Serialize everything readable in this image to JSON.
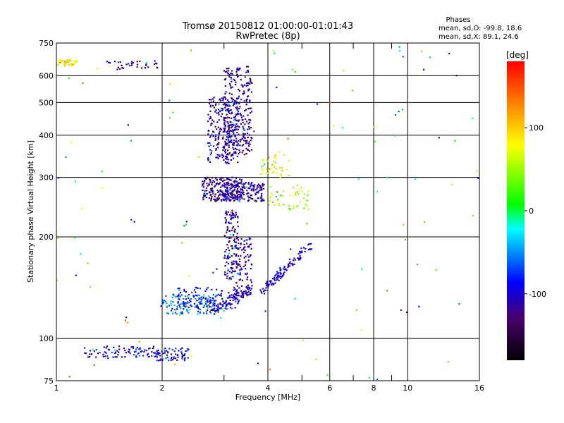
{
  "chart_data": {
    "type": "scatter",
    "title": "Tromsø 20150812 01:00:00-01:01:43",
    "subtitle": "RwPretec (8p)",
    "xlabel": "Frequency [MHz]",
    "ylabel": "Stationary phase Virtual Height [km]",
    "x_scale": "log",
    "y_scale": "log",
    "xlim": [
      1,
      16
    ],
    "ylim": [
      75,
      750
    ],
    "x_ticks": [
      1,
      2,
      4,
      6,
      8,
      10,
      16
    ],
    "x_minor_ticks": [
      3,
      5,
      7,
      9
    ],
    "y_ticks": [
      75,
      100,
      200,
      300,
      400,
      500,
      600,
      750
    ],
    "grid": true,
    "stats_header": "Phases",
    "stats_line_O": "mean, sd,O: -99.8, 18.6",
    "stats_line_X": "mean, sd,X: 89.1, 24.6",
    "colorbar": {
      "label": "[deg]",
      "range": [
        -180,
        180
      ],
      "ticks": [
        100,
        0,
        -100
      ],
      "colors": [
        "#000000",
        "#4b006e",
        "#0000ff",
        "#00ffff",
        "#00ff00",
        "#ffff00",
        "#ff8000",
        "#ff0000"
      ]
    },
    "clusters": [
      {
        "x": [
          1.0,
          1.15
        ],
        "y": [
          640,
          670
        ],
        "phase": 90,
        "n": 40
      },
      {
        "x": [
          1.35,
          1.95
        ],
        "y": [
          625,
          665
        ],
        "phase": -110,
        "n": 35
      },
      {
        "x": [
          1.2,
          1.9
        ],
        "y": [
          88,
          95
        ],
        "phase": -95,
        "n": 80
      },
      {
        "x": [
          1.9,
          2.4
        ],
        "y": [
          86,
          94
        ],
        "phase": -95,
        "n": 70
      },
      {
        "x": [
          2.0,
          2.9
        ],
        "y": [
          118,
          135
        ],
        "phase": -60,
        "n": 130
      },
      {
        "x": [
          2.2,
          3.3
        ],
        "y": [
          122,
          142
        ],
        "phase": -90,
        "n": 110
      },
      {
        "x": [
          2.7,
          3.3
        ],
        "y": [
          330,
          520
        ],
        "phase": -110,
        "n": 260
      },
      {
        "x": [
          3.0,
          3.6
        ],
        "y": [
          350,
          640
        ],
        "phase": -120,
        "n": 240
      },
      {
        "x": [
          2.6,
          3.4
        ],
        "y": [
          255,
          300
        ],
        "phase": -120,
        "n": 200
      },
      {
        "x": [
          3.0,
          3.9
        ],
        "y": [
          255,
          290
        ],
        "phase": -110,
        "n": 170
      },
      {
        "x": [
          3.0,
          3.3
        ],
        "y": [
          150,
          240
        ],
        "phase": -115,
        "n": 120
      },
      {
        "x": [
          3.2,
          3.6
        ],
        "y": [
          135,
          200
        ],
        "phase": -115,
        "n": 110
      },
      {
        "x": [
          3.8,
          4.6
        ],
        "y": [
          300,
          360
        ],
        "phase": 80,
        "n": 40
      },
      {
        "x": [
          4.0,
          5.3
        ],
        "y": [
          240,
          285
        ],
        "phase": 60,
        "n": 50
      }
    ],
    "traces": [
      {
        "from": [
          3.8,
          137
        ],
        "to": [
          5.3,
          190
        ],
        "phase": -100,
        "n": 110
      },
      {
        "from": [
          2.7,
          118
        ],
        "to": [
          3.6,
          140
        ],
        "phase": -105,
        "n": 80
      }
    ],
    "scatter_noise": {
      "phase_range": [
        -140,
        150
      ],
      "n": 120
    }
  }
}
